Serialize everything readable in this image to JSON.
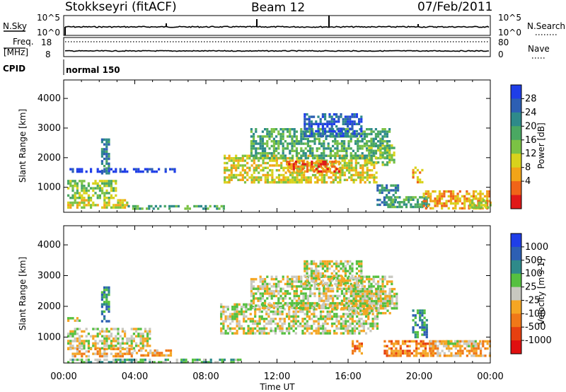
{
  "header": {
    "station": "Stokkseyri (fitACF)",
    "beam": "Beam 12",
    "date": "07/Feb/2011"
  },
  "top_panels": {
    "nsky_label": "N.Sky",
    "nsearch_label": "N.Search",
    "nsky_ticks": [
      "10^5",
      "10^0"
    ],
    "nsearch_ticks": [
      "10^5",
      "10^0"
    ],
    "freq_label_1": "Freq.",
    "freq_label_2": "[MHz]",
    "freq_ticks": [
      "18",
      "8"
    ],
    "nave_label": "Nave",
    "nave_ticks": [
      "80",
      "0"
    ],
    "cpid_label": "CPID",
    "cpid_value": "normal 150"
  },
  "colors": {
    "power_scale": [
      "#1f3ee8",
      "#2d5fb3",
      "#2e8a8a",
      "#4aa862",
      "#7bc244",
      "#d8d21c",
      "#f2a418",
      "#f06418",
      "#e01818"
    ],
    "velocity_scale": [
      "#1f3ee8",
      "#2d5fb3",
      "#2e8a8a",
      "#55c040",
      "#c8c8c0",
      "#f5a623",
      "#f07818",
      "#e64010",
      "#e01010"
    ]
  },
  "chart_data": [
    {
      "type": "heatmap",
      "title": "Power",
      "colorbar_label": "Power [dB]",
      "colorbar_ticks": [
        "28",
        "24",
        "20",
        "16",
        "12",
        "8",
        "4"
      ],
      "ylabel": "Slant Range [km]",
      "yticks": [
        "4000",
        "3000",
        "2000",
        "1000"
      ],
      "ylim": [
        180,
        4600
      ],
      "xticks": [
        "00:00",
        "04:00",
        "08:00",
        "12:00",
        "16:00",
        "20:00",
        "00:00"
      ],
      "xlim_hours": [
        0,
        24
      ],
      "grid": false,
      "regions": [
        {
          "t0": 0.2,
          "t1": 3.0,
          "r0": 650,
          "r1": 1250,
          "c": 4
        },
        {
          "t0": 0.2,
          "t1": 3.6,
          "r0": 350,
          "r1": 600,
          "c": 5
        },
        {
          "t0": 3.6,
          "t1": 9.0,
          "r0": 260,
          "r1": 400,
          "c": 3
        },
        {
          "t0": 0.2,
          "t1": 6.2,
          "r0": 1550,
          "r1": 1650,
          "c": 0
        },
        {
          "t0": 2.1,
          "t1": 2.5,
          "r0": 1500,
          "r1": 2650,
          "c": 2
        },
        {
          "t0": 9.0,
          "t1": 17.6,
          "r0": 1150,
          "r1": 2100,
          "c": 5
        },
        {
          "t0": 12.5,
          "t1": 15.5,
          "r0": 1500,
          "r1": 1900,
          "c": 7
        },
        {
          "t0": 10.5,
          "t1": 18.3,
          "r0": 1950,
          "r1": 3000,
          "c": 3
        },
        {
          "t0": 13.5,
          "t1": 16.8,
          "r0": 2700,
          "r1": 3500,
          "c": 1
        },
        {
          "t0": 17.0,
          "t1": 18.6,
          "r0": 1800,
          "r1": 2450,
          "c": 4
        },
        {
          "t0": 17.6,
          "t1": 18.8,
          "r0": 400,
          "r1": 1100,
          "c": 2
        },
        {
          "t0": 19.6,
          "t1": 20.2,
          "r0": 1200,
          "r1": 1700,
          "c": 6
        },
        {
          "t0": 18.2,
          "t1": 20.5,
          "r0": 300,
          "r1": 700,
          "c": 3
        },
        {
          "t0": 20.2,
          "t1": 24.0,
          "r0": 300,
          "r1": 900,
          "c": 6
        },
        {
          "t0": 22.8,
          "t1": 24.0,
          "r0": 300,
          "r1": 600,
          "c": 5
        }
      ]
    },
    {
      "type": "heatmap",
      "title": "Velocity",
      "colorbar_label": "Velocity [m s-1]",
      "colorbar_ticks": [
        "1000",
        "500",
        "100",
        "25",
        "-25",
        "-100",
        "-500",
        "-1000"
      ],
      "ylabel": "Slant Range [km]",
      "yticks": [
        "4000",
        "3000",
        "2000",
        "1000"
      ],
      "ylim": [
        180,
        4600
      ],
      "xticks": [
        "00:00",
        "04:00",
        "08:00",
        "12:00",
        "16:00",
        "20:00",
        "00:00"
      ],
      "xlim_hours": [
        0,
        24
      ],
      "xlabel": "Time UT",
      "grid": false,
      "regions": [
        {
          "t0": 0.2,
          "t1": 4.8,
          "r0": 650,
          "r1": 1300,
          "c": 4
        },
        {
          "t0": 0.2,
          "t1": 3.8,
          "r0": 400,
          "r1": 650,
          "c": 5
        },
        {
          "t0": 3.8,
          "t1": 6.0,
          "r0": 400,
          "r1": 600,
          "c": 5
        },
        {
          "t0": 0.2,
          "t1": 10.0,
          "r0": 220,
          "r1": 300,
          "c": 3
        },
        {
          "t0": 0.2,
          "t1": 1.0,
          "r0": 1550,
          "r1": 1650,
          "c": 4
        },
        {
          "t0": 2.1,
          "t1": 2.5,
          "r0": 1500,
          "r1": 2650,
          "c": 2
        },
        {
          "t0": 8.8,
          "t1": 17.6,
          "r0": 1100,
          "r1": 2100,
          "c": 4
        },
        {
          "t0": 10.5,
          "t1": 18.5,
          "r0": 1950,
          "r1": 3000,
          "c": 4
        },
        {
          "t0": 13.5,
          "t1": 16.8,
          "r0": 2700,
          "r1": 3500,
          "c": 4
        },
        {
          "t0": 16.0,
          "t1": 18.8,
          "r0": 1800,
          "r1": 2600,
          "c": 4
        },
        {
          "t0": 16.2,
          "t1": 16.8,
          "r0": 500,
          "r1": 900,
          "c": 6
        },
        {
          "t0": 19.6,
          "t1": 20.4,
          "r0": 1000,
          "r1": 1900,
          "c": 2
        },
        {
          "t0": 18.0,
          "t1": 20.8,
          "r0": 400,
          "r1": 900,
          "c": 6
        },
        {
          "t0": 20.6,
          "t1": 24.0,
          "r0": 400,
          "r1": 900,
          "c": 5
        },
        {
          "t0": 21.2,
          "t1": 23.4,
          "r0": 700,
          "r1": 900,
          "c": 4
        }
      ]
    }
  ]
}
